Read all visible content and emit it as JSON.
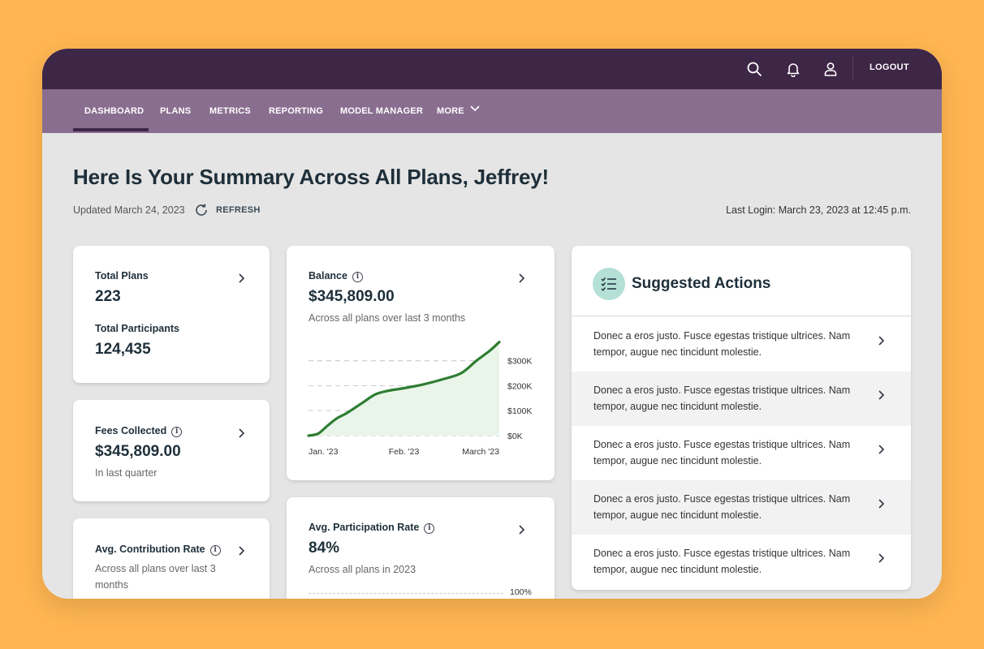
{
  "topbar": {
    "icons": [
      "search-icon",
      "bell-icon",
      "user-icon"
    ],
    "logout_label": "LOGOUT",
    "colors": {
      "topbar": "#3E2646",
      "navbar": "#8A6E90",
      "background": "#FEB552"
    }
  },
  "nav": {
    "items": [
      "DASHBOARD",
      "PLANS",
      "METRICS",
      "REPORTING",
      "MODEL MANAGER",
      "MORE"
    ],
    "active": "DASHBOARD"
  },
  "header": {
    "title": "Here Is Your Summary Across All Plans, Jeffrey!",
    "updated": "Updated March 24, 2023",
    "refresh_label": "REFRESH",
    "last_login": "Last Login: March 23, 2023 at 12:45 p.m."
  },
  "cards": {
    "plans": {
      "total_plans_label": "Total Plans",
      "total_plans_value": "223",
      "total_participants_label": "Total Participants",
      "total_participants_value": "124,435"
    },
    "fees": {
      "label": "Fees Collected",
      "value": "$345,809.00",
      "sub": "In last quarter"
    },
    "contribution": {
      "label": "Avg. Contribution Rate",
      "sub": "Across all plans over last 3 months"
    },
    "balance": {
      "label": "Balance",
      "value": "$345,809.00",
      "sub": "Across all plans over last 3 months"
    },
    "participation": {
      "label": "Avg. Participation Rate",
      "value": "84%",
      "sub": "Across all plans in 2023",
      "axis_top": "100%"
    }
  },
  "chart_data": {
    "type": "area",
    "title": "Balance",
    "x": [
      0,
      0.05,
      0.1,
      0.15,
      0.2,
      0.28,
      0.35,
      0.42,
      0.5,
      0.6,
      0.7,
      0.8,
      0.88,
      0.95,
      1.0
    ],
    "y": [
      0,
      8,
      40,
      70,
      90,
      130,
      165,
      180,
      190,
      205,
      225,
      250,
      300,
      340,
      375
    ],
    "x_tick_labels": [
      "Jan. '23",
      "Feb. '23",
      "March '23"
    ],
    "y_ticks": [
      0,
      100,
      200,
      300
    ],
    "y_tick_labels": [
      "$0K",
      "$100K",
      "$200K",
      "$300K"
    ],
    "ylim": [
      0,
      380
    ],
    "xlim": [
      0,
      1
    ],
    "line_color": "#2E7D32",
    "fill_color": "#EAF5EA",
    "grid": true
  },
  "suggested": {
    "title": "Suggested Actions",
    "items": [
      "Donec a eros justo. Fusce egestas tristique ultrices. Nam tempor, augue nec tincidunt molestie.",
      "Donec a eros justo. Fusce egestas tristique ultrices. Nam tempor, augue nec tincidunt molestie.",
      "Donec a eros justo. Fusce egestas tristique ultrices. Nam tempor, augue nec tincidunt molestie.",
      "Donec a eros justo. Fusce egestas tristique ultrices. Nam tempor, augue nec tincidunt molestie.",
      "Donec a eros justo. Fusce egestas tristique ultrices. Nam tempor, augue nec tincidunt molestie."
    ]
  }
}
